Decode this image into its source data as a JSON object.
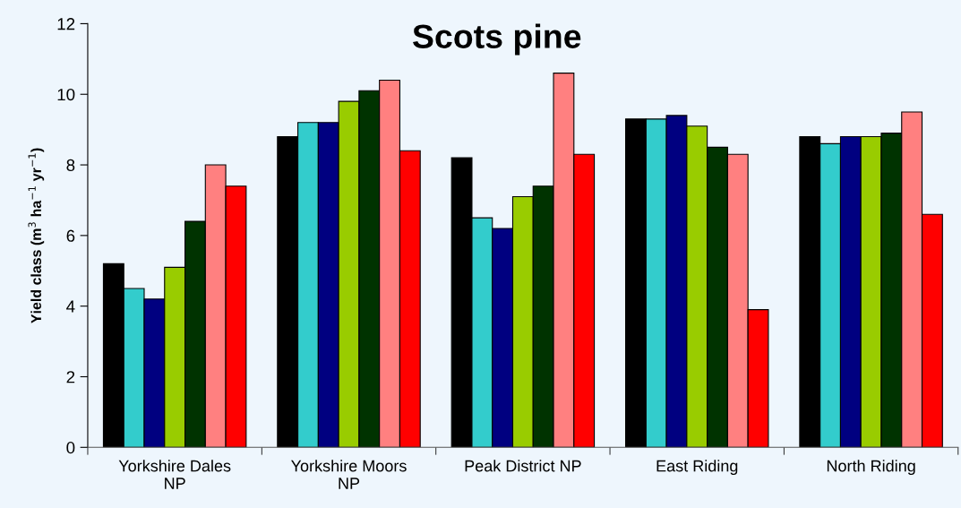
{
  "chart_data": {
    "type": "bar",
    "title": "Scots pine",
    "ylabel": "Yield class (m$^{3}$ ha$^{−1}$ yr$^{−1}$)",
    "categories": [
      "Yorkshire Dales\nNP",
      "Yorkshire Moors\nNP",
      "Peak District NP",
      "East Riding",
      "North Riding"
    ],
    "series": [
      {
        "color": "#000000",
        "values": [
          5.2,
          8.8,
          8.2,
          9.3,
          8.8
        ]
      },
      {
        "color": "#33cccc",
        "values": [
          4.5,
          9.2,
          6.5,
          9.3,
          8.6
        ]
      },
      {
        "color": "#000080",
        "values": [
          4.2,
          9.2,
          6.2,
          9.4,
          8.8
        ]
      },
      {
        "color": "#99cc00",
        "values": [
          5.1,
          9.8,
          7.1,
          9.1,
          8.8
        ]
      },
      {
        "color": "#003300",
        "values": [
          6.4,
          10.1,
          7.4,
          8.5,
          8.9
        ]
      },
      {
        "color": "#ff8080",
        "values": [
          8.0,
          10.4,
          10.6,
          8.3,
          9.5
        ]
      },
      {
        "color": "#ff0000",
        "values": [
          7.4,
          8.4,
          8.3,
          3.9,
          6.6
        ]
      }
    ],
    "ylim": [
      0,
      12
    ],
    "yticks": [
      0,
      2,
      4,
      6,
      8,
      10,
      12
    ],
    "grid": false
  }
}
